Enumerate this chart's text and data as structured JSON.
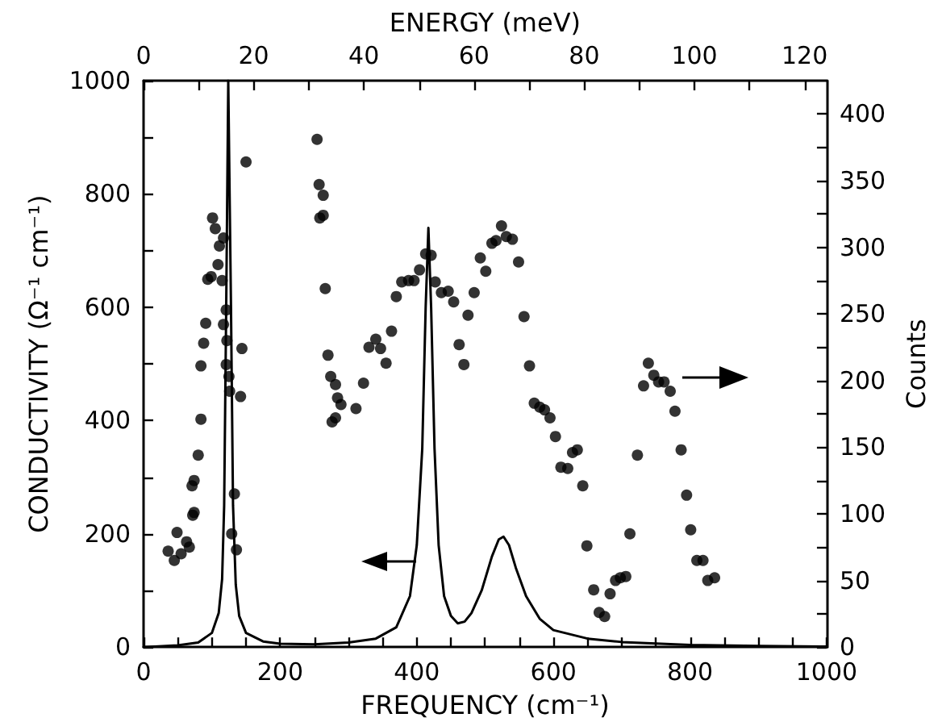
{
  "chart_data": {
    "type": "scatter",
    "xlabel": "FREQUENCY (cm⁻¹)",
    "ylabel": "CONDUCTIVITY (Ω⁻¹ cm⁻¹)",
    "y2label": "Counts",
    "x2label": "ENERGY (meV)",
    "xlim": [
      0,
      1000
    ],
    "xticks": [
      0,
      {
        "value": 50,
        "label": null
      },
      {
        "value": 100,
        "label": null
      },
      {
        "value": 150,
        "label": null
      },
      200,
      {
        "value": 250,
        "label": null
      },
      {
        "value": 300,
        "label": null
      },
      {
        "value": 350,
        "label": null
      },
      400,
      {
        "value": 450,
        "label": null
      },
      {
        "value": 500,
        "label": null
      },
      {
        "value": 550,
        "label": null
      },
      600,
      {
        "value": 650,
        "label": null
      },
      {
        "value": 700,
        "label": null
      },
      {
        "value": 750,
        "label": null
      },
      800,
      {
        "value": 850,
        "label": null
      },
      {
        "value": 900,
        "label": null
      },
      {
        "value": 950,
        "label": null
      },
      1000
    ],
    "x2lim": [
      0,
      124
    ],
    "x2ticks": [
      0,
      {
        "value": 10,
        "label": null
      },
      20,
      {
        "value": 30,
        "label": null
      },
      40,
      {
        "value": 50,
        "label": null
      },
      60,
      {
        "value": 70,
        "label": null
      },
      80,
      {
        "value": 90,
        "label": null
      },
      100,
      {
        "value": 110,
        "label": null
      },
      120
    ],
    "ylim": [
      0,
      1000
    ],
    "yticks": [
      0,
      {
        "value": 100,
        "label": null
      },
      200,
      {
        "value": 300,
        "label": null
      },
      400,
      {
        "value": 500,
        "label": null
      },
      600,
      {
        "value": 700,
        "label": null
      },
      800,
      {
        "value": 900,
        "label": null
      },
      1000
    ],
    "y2lim": [
      0,
      425
    ],
    "y2ticks": [
      0,
      {
        "value": 25,
        "label": null
      },
      50,
      {
        "value": 75,
        "label": null
      },
      100,
      {
        "value": 125,
        "label": null
      },
      150,
      {
        "value": 175,
        "label": null
      },
      200,
      {
        "value": 225,
        "label": null
      },
      250,
      {
        "value": 275,
        "label": null
      },
      300,
      {
        "value": 325,
        "label": null
      },
      350,
      {
        "value": 375,
        "label": null
      },
      400
    ],
    "series": [
      {
        "type": "line",
        "color": "#000000",
        "marker": "none",
        "x": [
          0,
          50,
          80,
          100,
          110,
          115,
          118,
          121,
          124,
          125.5,
          128,
          131,
          135,
          140,
          150,
          175,
          200,
          250,
          300,
          340,
          370,
          390,
          400,
          408,
          413,
          417,
          421,
          426,
          432,
          440,
          450,
          460,
          470,
          480,
          495,
          510,
          520,
          527,
          535,
          545,
          560,
          580,
          600,
          650,
          700,
          800,
          900,
          1000
        ],
        "values": [
          0,
          3,
          8,
          25,
          60,
          120,
          250,
          600,
          1000,
          1000,
          600,
          250,
          110,
          55,
          25,
          10,
          6,
          5,
          8,
          15,
          35,
          90,
          180,
          350,
          600,
          740,
          600,
          350,
          180,
          90,
          55,
          42,
          45,
          60,
          100,
          160,
          190,
          195,
          180,
          140,
          90,
          50,
          30,
          15,
          9,
          4,
          2,
          1
        ]
      },
      {
        "axis": "y2",
        "color": "#000000",
        "marker": "circle",
        "x": [
          36,
          45,
          49,
          55,
          63,
          67,
          72,
          74,
          71,
          74,
          80,
          84,
          84,
          88,
          91,
          94,
          99,
          101,
          105,
          109,
          111,
          115,
          117,
          117,
          121,
          122,
          125,
          121,
          126,
          133,
          129,
          136,
          142,
          144,
          150,
          254,
          257,
          258,
          263,
          263,
          266,
          270,
          274,
          281,
          284,
          289,
          276,
          281,
          311,
          322,
          330,
          340,
          347,
          355,
          363,
          370,
          378,
          388,
          396,
          404,
          413,
          421,
          427,
          436,
          446,
          454,
          462,
          469,
          475,
          484,
          493,
          501,
          510,
          516,
          524,
          531,
          540,
          549,
          557,
          565,
          572,
          580,
          587,
          595,
          603,
          611,
          621,
          628,
          635,
          643,
          649,
          659,
          667,
          675,
          683,
          691,
          698,
          706,
          712,
          723,
          732,
          739,
          747,
          754,
          762,
          771,
          778,
          787,
          795,
          801,
          810,
          819,
          826,
          836
        ],
        "values": [
          72,
          65,
          86,
          70,
          79,
          75,
          99,
          101,
          121,
          125,
          144,
          171,
          211,
          228,
          243,
          276,
          278,
          322,
          314,
          287,
          301,
          275,
          307,
          242,
          253,
          230,
          203,
          212,
          192,
          115,
          85,
          73,
          188,
          224,
          364,
          381,
          347,
          322,
          324,
          339,
          269,
          219,
          203,
          197,
          187,
          182,
          169,
          172,
          179,
          198,
          225,
          231,
          224,
          213,
          237,
          263,
          274,
          275,
          275,
          283,
          295,
          294,
          274,
          266,
          267,
          259,
          227,
          212,
          249,
          266,
          292,
          282,
          303,
          305,
          316,
          308,
          306,
          289,
          248,
          211,
          183,
          180,
          178,
          172,
          158,
          135,
          134,
          146,
          148,
          121,
          76,
          43,
          26,
          23,
          40,
          50,
          52,
          53,
          85,
          144,
          196,
          213,
          204,
          199,
          199,
          192,
          177,
          148,
          114,
          88,
          65,
          65,
          50,
          52
        ]
      }
    ]
  }
}
